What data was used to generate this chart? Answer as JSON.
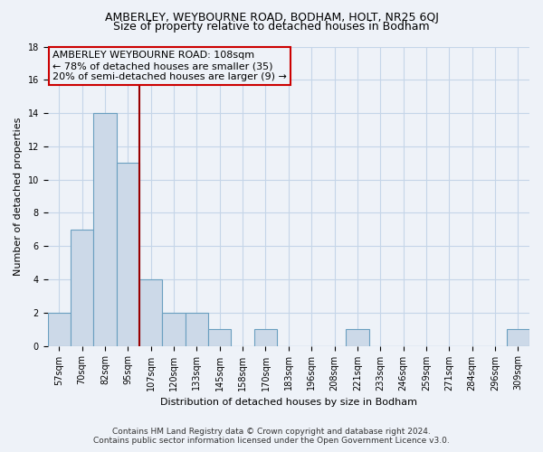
{
  "title1": "AMBERLEY, WEYBOURNE ROAD, BODHAM, HOLT, NR25 6QJ",
  "title2": "Size of property relative to detached houses in Bodham",
  "xlabel": "Distribution of detached houses by size in Bodham",
  "ylabel": "Number of detached properties",
  "bar_color": "#ccd9e8",
  "bar_edge_color": "#6a9fc0",
  "categories": [
    "57sqm",
    "70sqm",
    "82sqm",
    "95sqm",
    "107sqm",
    "120sqm",
    "133sqm",
    "145sqm",
    "158sqm",
    "170sqm",
    "183sqm",
    "196sqm",
    "208sqm",
    "221sqm",
    "233sqm",
    "246sqm",
    "259sqm",
    "271sqm",
    "284sqm",
    "296sqm",
    "309sqm"
  ],
  "values": [
    2,
    7,
    14,
    11,
    4,
    2,
    2,
    1,
    0,
    1,
    0,
    0,
    0,
    1,
    0,
    0,
    0,
    0,
    0,
    0,
    1
  ],
  "vline_x_idx": 4,
  "vline_color": "#990000",
  "ylim": [
    0,
    18
  ],
  "yticks": [
    0,
    2,
    4,
    6,
    8,
    10,
    12,
    14,
    16,
    18
  ],
  "annotation_title": "AMBERLEY WEYBOURNE ROAD: 108sqm",
  "annotation_line1": "← 78% of detached houses are smaller (35)",
  "annotation_line2": "20% of semi-detached houses are larger (9) →",
  "footnote1": "Contains HM Land Registry data © Crown copyright and database right 2024.",
  "footnote2": "Contains public sector information licensed under the Open Government Licence v3.0.",
  "bg_color": "#eef2f8",
  "grid_color": "#c5d5e8",
  "title_fontsize": 9,
  "subtitle_fontsize": 9,
  "axis_label_fontsize": 8,
  "tick_fontsize": 7,
  "annotation_fontsize": 8,
  "annotation_box_edge_color": "#cc0000",
  "footnote_fontsize": 6.5
}
